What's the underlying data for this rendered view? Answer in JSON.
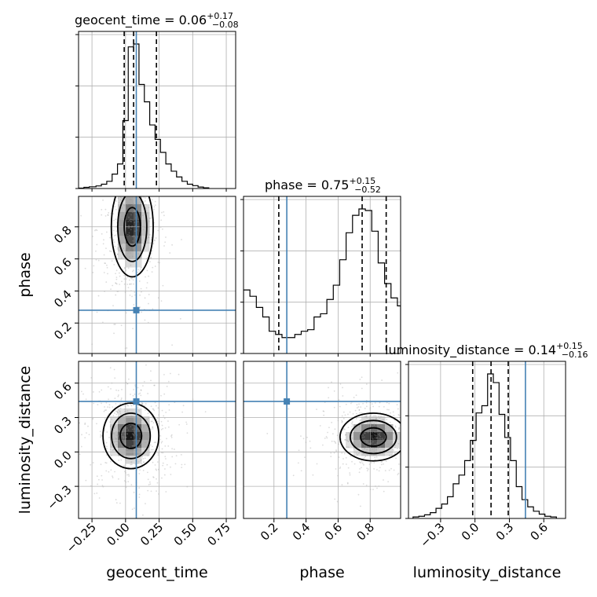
{
  "params": [
    "geocent_time",
    "phase",
    "luminosity_distance"
  ],
  "titles": {
    "geocent_time": {
      "name": "geocent_time",
      "median": "0.06",
      "plus": "+0.17",
      "minus": "−0.08"
    },
    "phase": {
      "name": "phase",
      "median": "0.75",
      "plus": "+0.15",
      "minus": "−0.52"
    },
    "luminosity_distance": {
      "name": "luminosity_distance",
      "median": "0.14",
      "plus": "+0.15",
      "minus": "−0.16"
    }
  },
  "axis_labels": {
    "geocent_time": "geocent_time",
    "phase": "phase",
    "luminosity_distance": "luminosity_distance"
  },
  "colors": {
    "truth": "#4682b4",
    "hist": "#000000"
  },
  "chart_data": {
    "type": "corner",
    "ranges": {
      "geocent_time": [
        -0.35,
        0.82
      ],
      "phase": [
        0.01,
        0.99
      ],
      "luminosity_distance": [
        -0.58,
        0.79
      ]
    },
    "ticks": {
      "geocent_time": [
        "−0.25",
        "0.00",
        "0.25",
        "0.50",
        "0.75"
      ],
      "phase": [
        "0.2",
        "0.4",
        "0.6",
        "0.8"
      ],
      "luminosity_distance_x": [
        "−0.3",
        "0.0",
        "0.3",
        "0.6"
      ],
      "luminosity_distance_y": [
        "−0.3",
        "0.0",
        "0.3",
        "0.6"
      ]
    },
    "truths": {
      "geocent_time": 0.08,
      "phase": 0.28,
      "luminosity_distance": 0.44
    },
    "quantiles": {
      "geocent_time": [
        -0.01,
        0.06,
        0.23
      ],
      "phase": [
        0.23,
        0.75,
        0.9
      ],
      "luminosity_distance": [
        -0.02,
        0.14,
        0.29
      ]
    },
    "histograms": {
      "geocent_time": {
        "bin_edges": [
          -0.35,
          -0.31,
          -0.27,
          -0.22,
          -0.18,
          -0.14,
          -0.1,
          -0.06,
          -0.02,
          0.02,
          0.06,
          0.1,
          0.14,
          0.18,
          0.22,
          0.26,
          0.3,
          0.34,
          0.38,
          0.42,
          0.46,
          0.5,
          0.54,
          0.58,
          0.62
        ],
        "heights": [
          0.3,
          0.8,
          1.2,
          1.8,
          3.0,
          5.0,
          10.0,
          17.0,
          47.0,
          98.0,
          100.0,
          72.0,
          60.0,
          44.0,
          34.0,
          25.0,
          17.0,
          12.0,
          8.0,
          5.0,
          3.0,
          2.0,
          1.0,
          0.5
        ]
      },
      "phase": {
        "bin_edges": [
          0.01,
          0.05,
          0.09,
          0.13,
          0.17,
          0.21,
          0.25,
          0.29,
          0.33,
          0.37,
          0.41,
          0.45,
          0.49,
          0.53,
          0.57,
          0.61,
          0.65,
          0.69,
          0.73,
          0.77,
          0.81,
          0.85,
          0.89,
          0.93,
          0.97,
          0.99
        ],
        "heights": [
          40.0,
          36.0,
          29.0,
          23.0,
          14.0,
          12.0,
          10.0,
          10.0,
          12.0,
          14.0,
          15.0,
          23.0,
          25.0,
          34.0,
          43.0,
          59.0,
          76.0,
          87.0,
          91.0,
          90.0,
          77.0,
          57.0,
          44.0,
          35.0,
          30.0
        ]
      },
      "luminosity_distance": {
        "bin_edges": [
          -0.54,
          -0.49,
          -0.44,
          -0.39,
          -0.34,
          -0.29,
          -0.24,
          -0.19,
          -0.14,
          -0.09,
          -0.04,
          0.01,
          0.06,
          0.11,
          0.16,
          0.21,
          0.26,
          0.31,
          0.36,
          0.41,
          0.46,
          0.51,
          0.56,
          0.61,
          0.66,
          0.71
        ],
        "heights": [
          1.0,
          1.5,
          2.5,
          4.0,
          7.0,
          10.0,
          15.0,
          24.0,
          30.0,
          40.0,
          54.0,
          73.0,
          78.0,
          100.0,
          94.0,
          72.0,
          56.0,
          40.0,
          22.0,
          13.0,
          8.0,
          5.0,
          3.0,
          1.5,
          1.0
        ]
      }
    },
    "posterior_peaks": [
      {
        "x": "geocent_time",
        "y": "phase",
        "center": [
          0.05,
          0.8
        ],
        "spread": [
          0.06,
          0.12
        ]
      },
      {
        "x": "geocent_time",
        "y": "luminosity_distance",
        "center": [
          0.04,
          0.14
        ],
        "spread": [
          0.08,
          0.11
        ]
      },
      {
        "x": "phase",
        "y": "luminosity_distance",
        "center": [
          0.82,
          0.13
        ],
        "spread": [
          0.08,
          0.08
        ]
      }
    ]
  }
}
